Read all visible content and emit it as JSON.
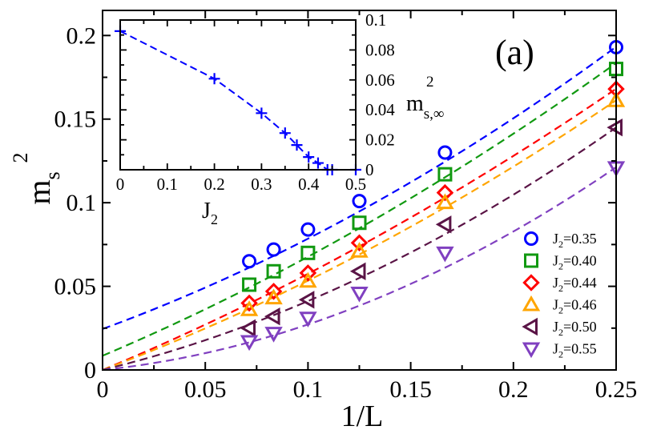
{
  "chart_data": [
    {
      "type": "scatter",
      "panel_label": "(a)",
      "xlabel": "1/L",
      "ylabel_base": "m",
      "ylabel_sub": "s",
      "ylabel_sup": "2",
      "xlim": [
        0,
        0.25
      ],
      "ylim": [
        0,
        0.215
      ],
      "xticks": [
        0,
        0.05,
        0.1,
        0.15,
        0.2,
        0.25
      ],
      "xtick_labels": [
        "0",
        "0.05",
        "0.1",
        "0.15",
        "0.2",
        "0.25"
      ],
      "yticks": [
        0,
        0.05,
        0.1,
        0.15,
        0.2
      ],
      "ytick_labels": [
        "0",
        "0.05",
        "0.1",
        "0.15",
        "0.2"
      ],
      "x": [
        0.0714,
        0.0833,
        0.1,
        0.125,
        0.1667,
        0.25
      ],
      "series": [
        {
          "name": "J2=0.35",
          "legend_base": "J",
          "legend_sub": "2",
          "legend_value": "=0.35",
          "marker": "circle",
          "color": "#0000ff",
          "values": [
            0.065,
            0.072,
            0.084,
            0.101,
            0.13,
            0.193
          ],
          "fit": {
            "a": 0.0245,
            "b": 0.45,
            "c": 0.9
          }
        },
        {
          "name": "J2=0.40",
          "legend_base": "J",
          "legend_sub": "2",
          "legend_value": "=0.40",
          "marker": "square",
          "color": "#119911",
          "values": [
            0.051,
            0.059,
            0.07,
            0.088,
            0.117,
            0.18
          ],
          "fit": {
            "a": 0.0085,
            "b": 0.52,
            "c": 0.72
          }
        },
        {
          "name": "J2=0.44",
          "legend_base": "J",
          "legend_sub": "2",
          "legend_value": "=0.44",
          "marker": "diamond",
          "color": "#ff0000",
          "values": [
            0.04,
            0.047,
            0.058,
            0.076,
            0.106,
            0.168
          ],
          "fit": {
            "a": 0.0,
            "b": 0.51,
            "c": 0.65
          }
        },
        {
          "name": "J2=0.46",
          "legend_base": "J",
          "legend_sub": "2",
          "legend_value": "=0.46",
          "marker": "triangle-up",
          "color": "#ffa500",
          "values": [
            0.036,
            0.043,
            0.053,
            0.071,
            0.1,
            0.161
          ],
          "fit": {
            "a": 0.0,
            "b": 0.46,
            "c": 0.74
          }
        },
        {
          "name": "J2=0.50",
          "legend_base": "J",
          "legend_sub": "2",
          "legend_value": "=0.50",
          "marker": "triangle-left",
          "color": "#5a1446",
          "values": [
            0.025,
            0.032,
            0.042,
            0.059,
            0.087,
            0.145
          ],
          "fit": {
            "a": 0.0,
            "b": 0.3,
            "c": 1.12
          }
        },
        {
          "name": "J2=0.55",
          "legend_base": "J",
          "legend_sub": "2",
          "legend_value": "=0.55",
          "marker": "triangle-down",
          "color": "#8040c0",
          "values": [
            0.017,
            0.022,
            0.031,
            0.046,
            0.07,
            0.121
          ],
          "fit": {
            "a": 0.0,
            "b": 0.13,
            "c": 1.42
          }
        }
      ],
      "legend": "bottom-right"
    },
    {
      "type": "line",
      "role": "inset",
      "xlabel_base": "J",
      "xlabel_sub": "2",
      "ylabel_base": "m",
      "ylabel_sub": "s,∞",
      "ylabel_sup": "2",
      "xlim": [
        0,
        0.5
      ],
      "ylim": [
        0,
        0.1
      ],
      "xticks": [
        0,
        0.1,
        0.2,
        0.3,
        0.4,
        0.5
      ],
      "xtick_labels": [
        "0",
        "0.1",
        "0.2",
        "0.3",
        "0.4",
        "0.5"
      ],
      "yticks": [
        0,
        0.02,
        0.04,
        0.06,
        0.08,
        0.1
      ],
      "ytick_labels": [
        "0",
        "0.02",
        "0.04",
        "0.06",
        "0.08",
        "0.1"
      ],
      "color": "#0000ff",
      "marker": "plus",
      "points": [
        {
          "x": 0.0,
          "y": 0.0926
        },
        {
          "x": 0.2,
          "y": 0.0608
        },
        {
          "x": 0.3,
          "y": 0.0378
        },
        {
          "x": 0.35,
          "y": 0.0245
        },
        {
          "x": 0.375,
          "y": 0.0165
        },
        {
          "x": 0.4,
          "y": 0.0085
        },
        {
          "x": 0.42,
          "y": 0.0045
        },
        {
          "x": 0.44,
          "y": 0.0
        },
        {
          "x": 0.45,
          "y": 0.0
        },
        {
          "x": 0.5,
          "y": 0.0
        }
      ]
    }
  ]
}
